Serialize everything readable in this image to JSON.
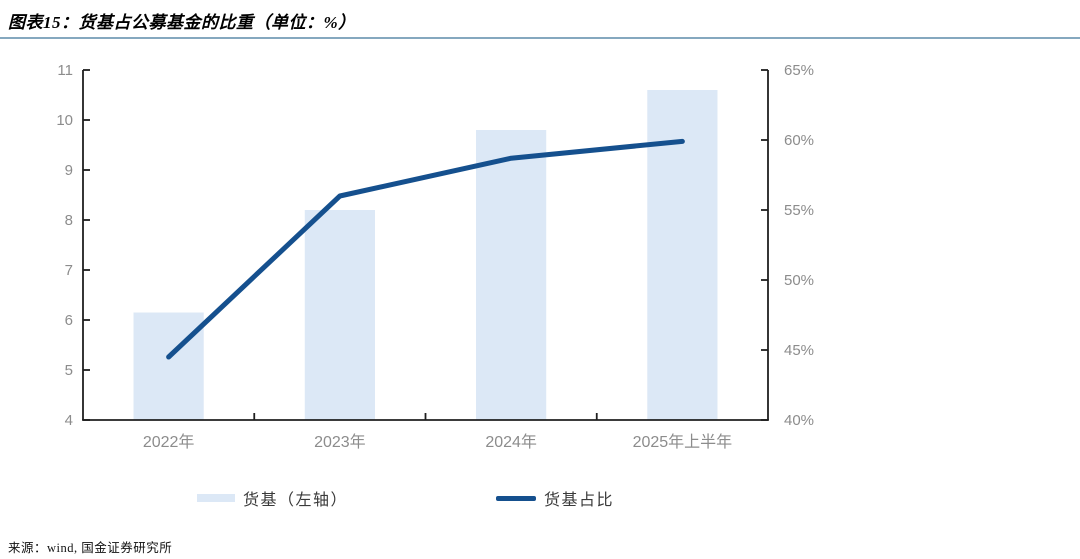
{
  "title": "图表15：货基占公募基金的比重（单位：%）",
  "source": "来源：wind, 国金证券研究所",
  "legend": {
    "bar_label": "货基（左轴）",
    "line_label": "货基占比"
  },
  "colors": {
    "bar": "#dce8f6",
    "line": "#15508e",
    "axis": "#1f1f1f",
    "tick_label": "#8c8c8c",
    "title_underline": "#85a8bf"
  },
  "chart_data": {
    "type": "bar",
    "title": "图表15：货基占公募基金的比重（单位：%）",
    "categories": [
      "2022年",
      "2023年",
      "2024年",
      "2025年上半年"
    ],
    "series": [
      {
        "name": "货基（左轴）",
        "type": "bar",
        "axis": "left",
        "values": [
          6.15,
          8.2,
          9.8,
          10.6
        ]
      },
      {
        "name": "货基占比",
        "type": "line",
        "axis": "right",
        "values": [
          44.5,
          56.0,
          58.7,
          59.9
        ]
      }
    ],
    "left_axis": {
      "min": 4,
      "max": 11,
      "step": 1,
      "suffix": ""
    },
    "right_axis": {
      "min": 40,
      "max": 65,
      "step": 5,
      "suffix": "%"
    },
    "grid": false,
    "legend_position": "bottom",
    "xlabel": "",
    "ylabel": ""
  }
}
